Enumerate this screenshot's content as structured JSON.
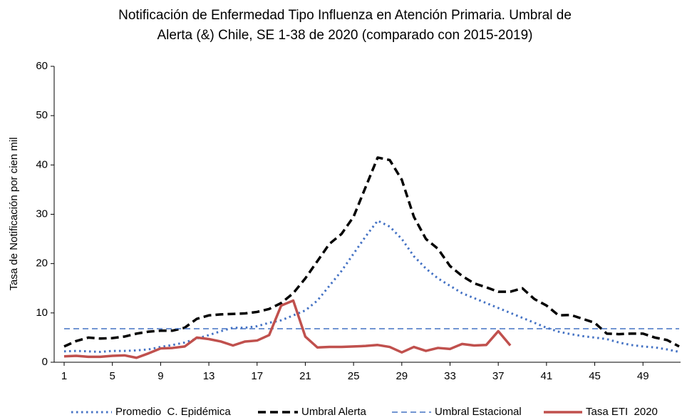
{
  "chart_data": {
    "type": "line",
    "title": [
      "Notificación de Enfermedad Tipo Influenza en Atención Primaria. Umbral de",
      "Alerta (&) Chile, SE 1-38 de 2020 (comparado con 2015-2019)"
    ],
    "y_label": "Tasa de Notificación por cien mil",
    "x": [
      1,
      2,
      3,
      4,
      5,
      6,
      7,
      8,
      9,
      10,
      11,
      12,
      13,
      14,
      15,
      16,
      17,
      18,
      19,
      20,
      21,
      22,
      23,
      24,
      25,
      26,
      27,
      28,
      29,
      30,
      31,
      32,
      33,
      34,
      35,
      36,
      37,
      38,
      39,
      40,
      41,
      42,
      43,
      44,
      45,
      46,
      47,
      48,
      49,
      50,
      51,
      52
    ],
    "xlim": [
      1,
      52
    ],
    "xticks": [
      1,
      5,
      9,
      13,
      17,
      21,
      25,
      29,
      33,
      37,
      41,
      45,
      49
    ],
    "ylim": [
      0,
      60
    ],
    "yticks": [
      0,
      10,
      20,
      30,
      40,
      50,
      60
    ],
    "legend": "bottom",
    "series": [
      {
        "name": "Promedio  C. Epidémica",
        "color": "#4472c4",
        "style": "dotted",
        "values": [
          2.2,
          2.3,
          2.2,
          2.1,
          2.3,
          2.3,
          2.4,
          2.6,
          3.1,
          3.5,
          4.0,
          4.8,
          5.5,
          6.3,
          7.0,
          7.0,
          7.3,
          8.0,
          8.5,
          9.5,
          10.5,
          12.5,
          15.5,
          18.5,
          22,
          25.5,
          28.7,
          27.5,
          25,
          21.5,
          19,
          17,
          15.5,
          14,
          13,
          12,
          11,
          10,
          9,
          8,
          7,
          6.2,
          5.7,
          5.3,
          5,
          4.7,
          4,
          3.5,
          3.2,
          3,
          2.6,
          2.1
        ]
      },
      {
        "name": "Umbral Alerta",
        "color": "#000000",
        "style": "dashed",
        "values": [
          3.2,
          4.3,
          5,
          4.8,
          4.9,
          5.2,
          5.8,
          6.2,
          6.4,
          6.4,
          7.0,
          8.8,
          9.5,
          9.7,
          9.8,
          9.9,
          10.2,
          10.8,
          12,
          14,
          17,
          20.5,
          24,
          26,
          29.5,
          35.5,
          41.5,
          41,
          37,
          29.5,
          25,
          23,
          19.5,
          17.5,
          16,
          15.2,
          14.3,
          14.3,
          15,
          12.8,
          11.5,
          9.5,
          9.6,
          8.8,
          8,
          5.8,
          5.7,
          5.8,
          5.8,
          5,
          4.5,
          3.2
        ]
      },
      {
        "name": "Umbral Estacional",
        "color": "#4472c4",
        "style": "thin-dashed",
        "values": [
          6.8,
          6.8,
          6.8,
          6.8,
          6.8,
          6.8,
          6.8,
          6.8,
          6.8,
          6.8,
          6.8,
          6.8,
          6.8,
          6.8,
          6.8,
          6.8,
          6.8,
          6.8,
          6.8,
          6.8,
          6.8,
          6.8,
          6.8,
          6.8,
          6.8,
          6.8,
          6.8,
          6.8,
          6.8,
          6.8,
          6.8,
          6.8,
          6.8,
          6.8,
          6.8,
          6.8,
          6.8,
          6.8,
          6.8,
          6.8,
          6.8,
          6.8,
          6.8,
          6.8,
          6.8,
          6.8,
          6.8,
          6.8,
          6.8,
          6.8,
          6.8,
          6.8
        ]
      },
      {
        "name": "Tasa ETI  2020",
        "color": "#c0504d",
        "style": "solid",
        "values": [
          1.2,
          1.3,
          1.1,
          1.1,
          1.3,
          1.4,
          0.9,
          1.8,
          2.8,
          2.9,
          3.2,
          5.0,
          4.7,
          4.2,
          3.4,
          4.2,
          4.4,
          5.5,
          11.5,
          12.5,
          5.2,
          3.0,
          3.1,
          3.1,
          3.2,
          3.3,
          3.5,
          3.1,
          2.0,
          3.1,
          2.3,
          2.9,
          2.7,
          3.7,
          3.4,
          3.5,
          6.3,
          3.4,
          null,
          null,
          null,
          null,
          null,
          null,
          null,
          null,
          null,
          null,
          null,
          null,
          null,
          null
        ]
      }
    ]
  }
}
